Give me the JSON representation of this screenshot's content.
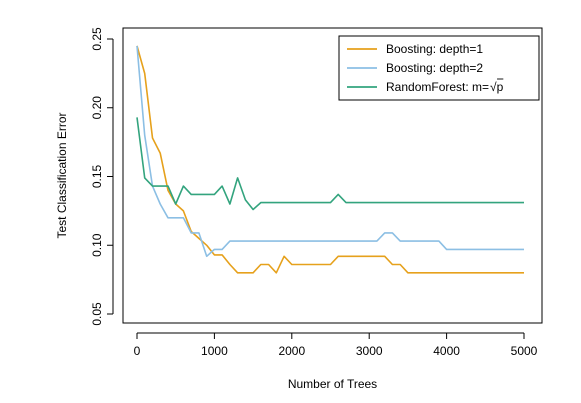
{
  "chart_data": {
    "type": "line",
    "title": "",
    "xlabel": "Number of Trees",
    "ylabel": "Test Classification Error",
    "xlim": [
      0,
      5000
    ],
    "ylim": [
      0.05,
      0.25
    ],
    "xticks": [
      0,
      1000,
      2000,
      3000,
      4000,
      5000
    ],
    "yticks": [
      0.05,
      0.1,
      0.15,
      0.2,
      0.25
    ],
    "xtick_labels": [
      "0",
      "1000",
      "2000",
      "3000",
      "4000",
      "5000"
    ],
    "ytick_labels": [
      "0.05",
      "0.10",
      "0.15",
      "0.20",
      "0.25"
    ],
    "grid": false,
    "legend_position": "top-right",
    "series": [
      {
        "name": "Boosting: depth=1",
        "color": "#e6a11c",
        "points": [
          [
            0,
            0.245
          ],
          [
            100,
            0.225
          ],
          [
            200,
            0.178
          ],
          [
            300,
            0.167
          ],
          [
            400,
            0.14
          ],
          [
            500,
            0.13
          ],
          [
            600,
            0.125
          ],
          [
            700,
            0.11
          ],
          [
            800,
            0.105
          ],
          [
            900,
            0.1
          ],
          [
            1000,
            0.093
          ],
          [
            1100,
            0.093
          ],
          [
            1200,
            0.086
          ],
          [
            1300,
            0.08
          ],
          [
            1400,
            0.08
          ],
          [
            1500,
            0.08
          ],
          [
            1600,
            0.086
          ],
          [
            1700,
            0.086
          ],
          [
            1800,
            0.08
          ],
          [
            1900,
            0.092
          ],
          [
            2000,
            0.086
          ],
          [
            2500,
            0.086
          ],
          [
            2600,
            0.092
          ],
          [
            3200,
            0.092
          ],
          [
            3300,
            0.086
          ],
          [
            3400,
            0.086
          ],
          [
            3500,
            0.08
          ],
          [
            5000,
            0.08
          ]
        ]
      },
      {
        "name": "Boosting: depth=2",
        "color": "#8cbfe4",
        "points": [
          [
            0,
            0.245
          ],
          [
            100,
            0.18
          ],
          [
            200,
            0.143
          ],
          [
            300,
            0.13
          ],
          [
            400,
            0.12
          ],
          [
            500,
            0.12
          ],
          [
            600,
            0.12
          ],
          [
            700,
            0.109
          ],
          [
            800,
            0.109
          ],
          [
            900,
            0.092
          ],
          [
            1000,
            0.097
          ],
          [
            1100,
            0.097
          ],
          [
            1200,
            0.103
          ],
          [
            1300,
            0.103
          ],
          [
            2000,
            0.103
          ],
          [
            3100,
            0.103
          ],
          [
            3200,
            0.109
          ],
          [
            3300,
            0.109
          ],
          [
            3400,
            0.103
          ],
          [
            3900,
            0.103
          ],
          [
            4000,
            0.097
          ],
          [
            5000,
            0.097
          ]
        ]
      },
      {
        "name": "RandomForest: m=",
        "label_sqrt": "√p",
        "color": "#33a47e",
        "points": [
          [
            0,
            0.193
          ],
          [
            100,
            0.149
          ],
          [
            200,
            0.143
          ],
          [
            300,
            0.143
          ],
          [
            400,
            0.143
          ],
          [
            500,
            0.13
          ],
          [
            600,
            0.143
          ],
          [
            700,
            0.137
          ],
          [
            800,
            0.137
          ],
          [
            900,
            0.137
          ],
          [
            1000,
            0.137
          ],
          [
            1100,
            0.143
          ],
          [
            1200,
            0.13
          ],
          [
            1300,
            0.149
          ],
          [
            1400,
            0.133
          ],
          [
            1500,
            0.126
          ],
          [
            1600,
            0.131
          ],
          [
            2500,
            0.131
          ],
          [
            2600,
            0.137
          ],
          [
            2700,
            0.131
          ],
          [
            5000,
            0.131
          ]
        ]
      }
    ]
  }
}
